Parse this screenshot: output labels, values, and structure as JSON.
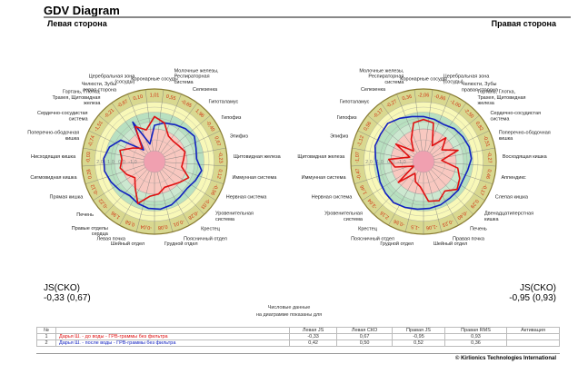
{
  "header": {
    "title": "GDV Diagram",
    "left_side": "Левая сторона",
    "right_side": "Правая сторона"
  },
  "colors": {
    "series1": "#e01010",
    "series2": "#1020c0",
    "outer_ring": "#d8d890",
    "light_yellow": "#f8f8b8",
    "green": "#b8e0c0",
    "pink": "#f8c8c0",
    "center": "#f0a0b0",
    "sector_value": "#d03010"
  },
  "chart_data": [
    {
      "type": "radar",
      "side": "Левая сторона",
      "rlim": [
        0,
        1
      ],
      "ring_labels": [
        "2,0",
        "1,0",
        "0,0",
        "-1,0"
      ],
      "axes": [
        "Коронарные сосуды",
        "Молочные железы, Респираторная система",
        "Селезенка",
        "Гипоталамус",
        "Гипофиз",
        "Эпифиз",
        "Щитовидная железа",
        "Иммунная система",
        "Нервная система",
        "Уровенительная система",
        "Крестец",
        "Поясничный отдел",
        "Грудной отдел",
        "Шейный отдел",
        "Левая почка",
        "Правые отделы сердца",
        "Печень",
        "Прямая кишка",
        "Сигмовидная кишка",
        "Нисходящая кишка",
        "Поперечно-ободочная кишка",
        "Сердечно-сосудистая система",
        "Гортань, Глотка, Трахея, Щитовидная железа",
        "Челюсти, Зубы левая сторона",
        "Церебральная зона (сосуды)"
      ],
      "sector_values": [
        "1,01",
        "0,55",
        "-0,65",
        "1,96",
        "-0,40",
        "0,67",
        "-0,23",
        "0,12",
        "-0,56",
        "-0,03",
        "-0,28",
        "-0,01",
        "0,08",
        "-0,04",
        "0,58",
        "1,96",
        "-0,22",
        "-0,12",
        "0,28",
        "-0,03",
        "-0,74",
        "-1,51",
        "-0,21",
        "-0,67",
        "0,10"
      ],
      "series": [
        {
          "values": [
            0.62,
            0.55,
            0.4,
            0.38,
            0.4,
            0.44,
            0.4,
            0.38,
            0.52,
            0.45,
            0.4,
            0.38,
            0.45,
            0.48,
            0.62,
            0.45,
            0.35,
            0.42,
            0.48,
            0.45,
            0.5,
            0.35,
            0.25,
            0.55,
            0.45
          ]
        },
        {
          "values": [
            0.5,
            0.55,
            0.58,
            0.62,
            0.65,
            0.6,
            0.58,
            0.66,
            0.62,
            0.58,
            0.6,
            0.64,
            0.66,
            0.65,
            0.62,
            0.58,
            0.62,
            0.66,
            0.7,
            0.7,
            0.65,
            0.55,
            0.22,
            0.62,
            0.25
          ]
        }
      ]
    },
    {
      "type": "radar",
      "side": "Правая сторона",
      "rlim": [
        0,
        1
      ],
      "ring_labels": [
        "2,0",
        "1,0",
        "0,0",
        "-1,0"
      ],
      "axes": [
        "Коронарные сосуды",
        "Церебральная зона (сосуды)",
        "Челюсти, Зубы правая сторона",
        "Гортань, Глотка, Трахея, Щитовидная железа",
        "Сердечно-сосудистая система",
        "Поперечно-ободочная кишка",
        "Восходящая кишка",
        "Аппендикс",
        "Слепая кишка",
        "Двенадцатиперстная кишка",
        "Печень",
        "Правая почка",
        "Шейный отдел",
        "Грудной отдел",
        "Поясничный отдел",
        "Крестец",
        "Уровенительная система",
        "Нервная система",
        "Иммунная система",
        "Щитовидная железа",
        "Эпифиз",
        "Гипофиз",
        "Гипоталамус",
        "Селезенка",
        "Молочные железы, Респираторная система"
      ],
      "sector_values": [
        "-2,06",
        "-0,86",
        "-1,00",
        "-2,50",
        "0,82",
        "-0,51",
        "-0,27",
        "0,46",
        "-0,17",
        "0,29",
        "-0,40",
        "-0,23",
        "-1,06",
        "-1,5",
        "-0,56",
        "2,16",
        "-3,04",
        "1,46",
        "-0,47",
        "-1,07",
        "-1,12",
        "0,56",
        "-0,17",
        "-0,27",
        "0,36"
      ],
      "series": [
        {
          "values": [
            0.58,
            0.55,
            0.25,
            0.45,
            0.3,
            0.5,
            0.25,
            0.48,
            0.55,
            0.6,
            0.5,
            0.58,
            0.55,
            0.35,
            0.3,
            0.2,
            0.45,
            0.15,
            0.4,
            0.48,
            0.2,
            0.45,
            0.2,
            0.35,
            0.55
          ]
        },
        {
          "values": [
            0.62,
            0.6,
            0.58,
            0.62,
            0.64,
            0.66,
            0.66,
            0.62,
            0.6,
            0.62,
            0.62,
            0.64,
            0.65,
            0.66,
            0.68,
            0.7,
            0.68,
            0.66,
            0.64,
            0.66,
            0.7,
            0.7,
            0.72,
            0.68,
            0.64
          ]
        }
      ]
    }
  ],
  "js": {
    "label": "JS(CKO)",
    "left": "-0,33 (0,67)",
    "right": "-0,95 (0,93)"
  },
  "note": {
    "line1": "Числовые данные",
    "line2": "на диаграмме показаны для"
  },
  "table": {
    "headers": [
      "№",
      "",
      "Левая JS",
      "Левая СКО",
      "Правая JS",
      "Правая RMS",
      "Активация"
    ],
    "rows": [
      {
        "n": "1",
        "name": "Дарья Ш. - до воды - ГРВ-граммы без фильтра",
        "lj": "-0,33",
        "ls": "0,67",
        "rj": "-0,95",
        "rr": "0,93",
        "act": ""
      },
      {
        "n": "2",
        "name": "Дарья Ш. - после воды - ГРВ-граммы без фильтра",
        "lj": "0,42",
        "ls": "0,50",
        "rj": "0,52",
        "rr": "0,36",
        "act": ""
      }
    ]
  },
  "footer": {
    "copyright": "© Kirlionics Technologies International"
  }
}
